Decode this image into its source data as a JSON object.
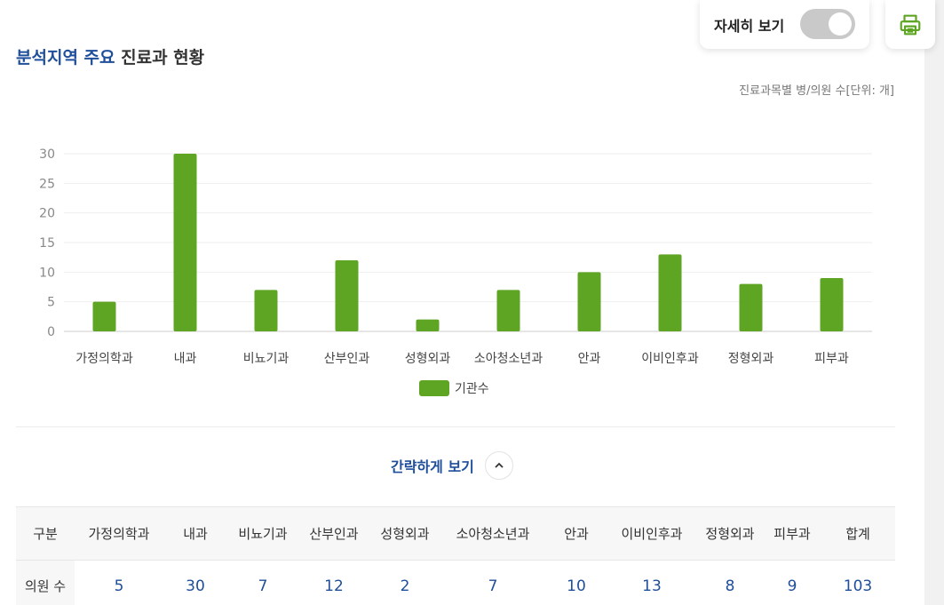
{
  "header": {
    "detail_toggle_label": "자세히 보기",
    "detail_toggle_on": true,
    "print_icon": "printer-icon"
  },
  "title": {
    "strong": "분석지역 주요",
    "rest": "진료과 현황"
  },
  "unit_note": "진료과목별 병/의원 수[단위: 개]",
  "chart_data": {
    "type": "bar",
    "categories": [
      "가정의학과",
      "내과",
      "비뇨기과",
      "산부인과",
      "성형외과",
      "소아청소년과",
      "안과",
      "이비인후과",
      "정형외과",
      "피부과"
    ],
    "series": [
      {
        "name": "기관수",
        "values": [
          5,
          30,
          7,
          12,
          2,
          7,
          10,
          13,
          8,
          9
        ],
        "color": "#5ea523"
      }
    ],
    "yticks": [
      0,
      5,
      10,
      15,
      20,
      25,
      30
    ],
    "ylim": [
      0,
      30
    ],
    "grid": true,
    "legend_position": "bottom-center"
  },
  "collapse": {
    "label": "간략하게 보기",
    "icon": "chevron-up-icon"
  },
  "table": {
    "headers": [
      "구분",
      "가정의학과",
      "내과",
      "비뇨기과",
      "산부인과",
      "성형외과",
      "소아청소년과",
      "안과",
      "이비인후과",
      "정형외과",
      "피부과",
      "합계"
    ],
    "row_label": "의원 수",
    "values": [
      "5",
      "30",
      "7",
      "12",
      "2",
      "7",
      "10",
      "13",
      "8",
      "9",
      "103"
    ]
  }
}
